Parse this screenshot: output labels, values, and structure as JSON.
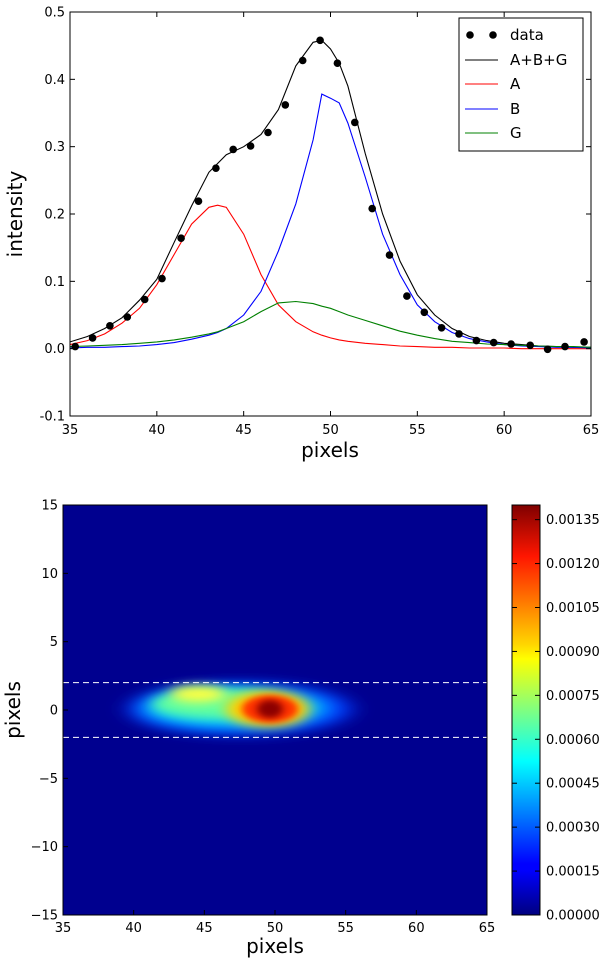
{
  "chart_data": [
    {
      "type": "line",
      "xlabel": "pixels",
      "ylabel": "intensity",
      "xlim": [
        35,
        65
      ],
      "ylim": [
        -0.1,
        0.5
      ],
      "xticks": [
        "35",
        "40",
        "45",
        "50",
        "55",
        "60",
        "65"
      ],
      "yticks": [
        "-0.1",
        "0.0",
        "0.1",
        "0.2",
        "0.3",
        "0.4",
        "0.5"
      ],
      "grid": false,
      "legend_position": "top-right",
      "data_points": {
        "name": "data",
        "color": "#000000",
        "x": [
          35.3,
          36.3,
          37.3,
          38.3,
          39.3,
          40.3,
          41.4,
          42.4,
          43.4,
          44.4,
          45.4,
          46.4,
          47.4,
          48.4,
          49.4,
          50.4,
          51.4,
          52.4,
          53.4,
          54.4,
          55.4,
          56.4,
          57.4,
          58.4,
          59.4,
          60.4,
          61.5,
          62.5,
          63.5,
          64.6
        ],
        "y": [
          0.003,
          0.016,
          0.034,
          0.047,
          0.073,
          0.104,
          0.164,
          0.219,
          0.268,
          0.296,
          0.301,
          0.321,
          0.362,
          0.428,
          0.458,
          0.424,
          0.336,
          0.208,
          0.139,
          0.078,
          0.054,
          0.031,
          0.022,
          0.012,
          0.009,
          0.007,
          0.005,
          -0.001,
          0.003,
          0.01
        ]
      },
      "x": [
        35,
        36,
        37,
        38,
        39,
        40,
        41,
        42,
        43,
        43.5,
        44,
        45,
        46,
        47,
        48,
        49,
        49.5,
        50,
        50.5,
        51,
        52,
        53,
        54,
        55,
        56,
        57,
        58,
        59,
        60,
        61,
        62,
        63,
        64,
        65
      ],
      "series": [
        {
          "name": "A+B+G",
          "color": "#000000",
          "values": [
            0.01,
            0.018,
            0.03,
            0.046,
            0.072,
            0.103,
            0.158,
            0.212,
            0.262,
            0.275,
            0.288,
            0.3,
            0.318,
            0.355,
            0.42,
            0.455,
            0.458,
            0.445,
            0.424,
            0.39,
            0.29,
            0.2,
            0.13,
            0.08,
            0.05,
            0.03,
            0.018,
            0.012,
            0.008,
            0.006,
            0.004,
            0.003,
            0.002,
            0.002
          ]
        },
        {
          "name": "A",
          "color": "#ff0000",
          "values": [
            0.006,
            0.012,
            0.022,
            0.038,
            0.06,
            0.095,
            0.14,
            0.185,
            0.21,
            0.213,
            0.21,
            0.17,
            0.11,
            0.065,
            0.04,
            0.025,
            0.02,
            0.016,
            0.013,
            0.011,
            0.008,
            0.006,
            0.004,
            0.003,
            0.002,
            0.002,
            0.001,
            0.001,
            0.001,
            0.0,
            0.0,
            0.0,
            0.0,
            0.0
          ]
        },
        {
          "name": "B",
          "color": "#0000ff",
          "values": [
            0.001,
            0.002,
            0.002,
            0.003,
            0.004,
            0.006,
            0.009,
            0.014,
            0.02,
            0.024,
            0.03,
            0.05,
            0.085,
            0.145,
            0.215,
            0.31,
            0.378,
            0.372,
            0.365,
            0.335,
            0.255,
            0.17,
            0.11,
            0.065,
            0.04,
            0.024,
            0.015,
            0.01,
            0.006,
            0.004,
            0.003,
            0.002,
            0.002,
            0.001
          ]
        },
        {
          "name": "G",
          "color": "#008000",
          "values": [
            0.003,
            0.004,
            0.005,
            0.006,
            0.008,
            0.01,
            0.013,
            0.017,
            0.022,
            0.025,
            0.03,
            0.04,
            0.055,
            0.068,
            0.07,
            0.067,
            0.063,
            0.06,
            0.055,
            0.05,
            0.042,
            0.034,
            0.026,
            0.02,
            0.015,
            0.011,
            0.009,
            0.007,
            0.006,
            0.005,
            0.004,
            0.003,
            0.003,
            0.002
          ]
        }
      ]
    },
    {
      "type": "heatmap",
      "xlabel": "pixels",
      "ylabel": "pixels",
      "xlim": [
        35,
        65
      ],
      "ylim": [
        -15,
        15
      ],
      "xticks": [
        "35",
        "40",
        "45",
        "50",
        "55",
        "60",
        "65"
      ],
      "yticks": [
        "15",
        "10",
        "5",
        "0",
        "−5",
        "−10",
        "−15"
      ],
      "colormap": "jet",
      "colorbar": {
        "range": [
          0,
          0.0014
        ],
        "ticks": [
          "0.00135",
          "0.00120",
          "0.00105",
          "0.00090",
          "0.00075",
          "0.00060",
          "0.00045",
          "0.00030",
          "0.00015",
          "0.00000"
        ],
        "tick_values": [
          0.00135,
          0.0012,
          0.00105,
          0.0009,
          0.00075,
          0.0006,
          0.00045,
          0.0003,
          0.00015,
          0.0
        ]
      },
      "dashed_lines_y": [
        2,
        -2
      ],
      "dashed_line_color": "#ffffff",
      "peak_value": 0.0014,
      "peak_x": 49.6,
      "peak_y": 0.2
    }
  ]
}
